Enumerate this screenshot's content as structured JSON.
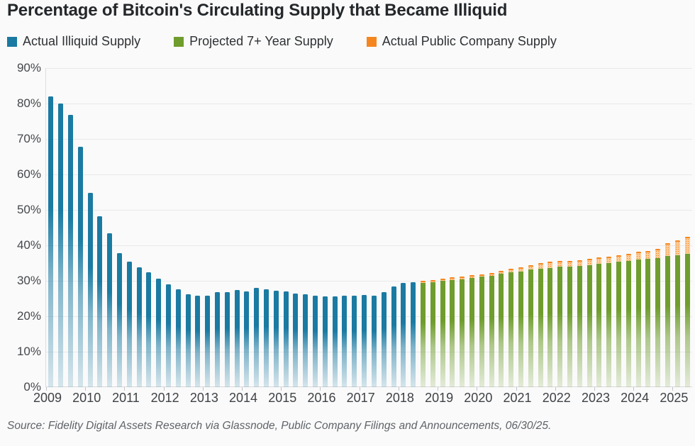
{
  "header": {
    "title": "Percentage of Bitcoin's Circulating Supply that Became Illiquid"
  },
  "legend": {
    "items": [
      {
        "label": "Actual Illiquid Supply",
        "color": "#1a7aa2"
      },
      {
        "label": "Projected 7+ Year Supply",
        "color": "#6f9d2d"
      },
      {
        "label": "Actual Public Company Supply",
        "color": "#f5861f"
      }
    ]
  },
  "footer": {
    "source": "Source: Fidelity Digital Assets Research via Glassnode, Public Company Filings and Announcements, 06/30/25."
  },
  "chart_data": {
    "type": "bar",
    "title": "Percentage of Bitcoin's Circulating Supply that Became Illiquid",
    "unit": "percent",
    "ylim": [
      0,
      90
    ],
    "ytick_step": 10,
    "yticks": [
      "0%",
      "10%",
      "20%",
      "30%",
      "40%",
      "50%",
      "60%",
      "70%",
      "80%",
      "90%"
    ],
    "grid": "horizontal",
    "legend_position": "top",
    "year_labels": [
      "2009",
      "2010",
      "2011",
      "2012",
      "2013",
      "2014",
      "2015",
      "2016",
      "2017",
      "2018",
      "2019",
      "2020",
      "2021",
      "2022",
      "2023",
      "2024",
      "2025"
    ],
    "categories": [
      "2009 Q1",
      "2009 Q2",
      "2009 Q3",
      "2009 Q4",
      "2010 Q1",
      "2010 Q2",
      "2010 Q3",
      "2010 Q4",
      "2011 Q1",
      "2011 Q2",
      "2011 Q3",
      "2011 Q4",
      "2012 Q1",
      "2012 Q2",
      "2012 Q3",
      "2012 Q4",
      "2013 Q1",
      "2013 Q2",
      "2013 Q3",
      "2013 Q4",
      "2014 Q1",
      "2014 Q2",
      "2014 Q3",
      "2014 Q4",
      "2015 Q1",
      "2015 Q2",
      "2015 Q3",
      "2015 Q4",
      "2016 Q1",
      "2016 Q2",
      "2016 Q3",
      "2016 Q4",
      "2017 Q1",
      "2017 Q2",
      "2017 Q3",
      "2017 Q4",
      "2018 Q1",
      "2018 Q2",
      "2018 Q3",
      "2018 Q4",
      "2019 Q1",
      "2019 Q2",
      "2019 Q3",
      "2019 Q4",
      "2020 Q1",
      "2020 Q2",
      "2020 Q3",
      "2020 Q4",
      "2021 Q1",
      "2021 Q2",
      "2021 Q3",
      "2021 Q4",
      "2022 Q1",
      "2022 Q2",
      "2022 Q3",
      "2022 Q4",
      "2023 Q1",
      "2023 Q2",
      "2023 Q3",
      "2023 Q4",
      "2024 Q1",
      "2024 Q2",
      "2024 Q3",
      "2024 Q4",
      "2025 Q1",
      "2025 Q2"
    ],
    "series": [
      {
        "name": "Actual Illiquid Supply",
        "color": "#1a7aa2",
        "values": [
          82.0,
          80.0,
          76.8,
          67.8,
          54.9,
          48.3,
          43.4,
          37.9,
          35.4,
          33.8,
          32.4,
          30.7,
          29.0,
          27.7,
          26.3,
          25.9,
          25.9,
          26.8,
          26.8,
          27.4,
          27.1,
          28.0,
          27.7,
          27.3,
          27.1,
          26.5,
          26.2,
          25.9,
          25.7,
          25.6,
          25.8,
          25.9,
          26.1,
          25.9,
          26.9,
          28.4,
          29.5,
          29.7,
          null,
          null,
          null,
          null,
          null,
          null,
          null,
          null,
          null,
          null,
          null,
          null,
          null,
          null,
          null,
          null,
          null,
          null,
          null,
          null,
          null,
          null,
          null,
          null,
          null,
          null,
          null,
          null
        ]
      },
      {
        "name": "Projected 7+ Year Supply",
        "color": "#6f9d2d",
        "values": [
          null,
          null,
          null,
          null,
          null,
          null,
          null,
          null,
          null,
          null,
          null,
          null,
          null,
          null,
          null,
          null,
          null,
          null,
          null,
          null,
          null,
          null,
          null,
          null,
          null,
          null,
          null,
          null,
          null,
          null,
          null,
          null,
          null,
          null,
          null,
          null,
          null,
          null,
          29.4,
          29.7,
          30.0,
          30.3,
          30.5,
          30.9,
          31.2,
          31.5,
          32.0,
          32.4,
          32.7,
          33.2,
          33.5,
          33.7,
          34.0,
          34.0,
          34.2,
          34.4,
          34.9,
          35.1,
          35.5,
          35.7,
          36.0,
          36.2,
          36.5,
          37.0,
          37.3,
          37.6
        ]
      },
      {
        "name": "Actual Public Company Supply",
        "color": "#f5861f",
        "values": [
          null,
          null,
          null,
          null,
          null,
          null,
          null,
          null,
          null,
          null,
          null,
          null,
          null,
          null,
          null,
          null,
          null,
          null,
          null,
          null,
          null,
          null,
          null,
          null,
          null,
          null,
          null,
          null,
          null,
          null,
          null,
          null,
          null,
          null,
          null,
          null,
          null,
          null,
          0.7,
          0.6,
          0.7,
          0.7,
          0.8,
          0.8,
          0.7,
          0.8,
          0.9,
          1.0,
          1.2,
          1.2,
          1.5,
          1.7,
          1.7,
          1.7,
          1.7,
          1.8,
          1.8,
          1.8,
          1.7,
          2.0,
          2.3,
          2.3,
          2.5,
          3.7,
          4.1,
          4.9
        ]
      }
    ]
  }
}
